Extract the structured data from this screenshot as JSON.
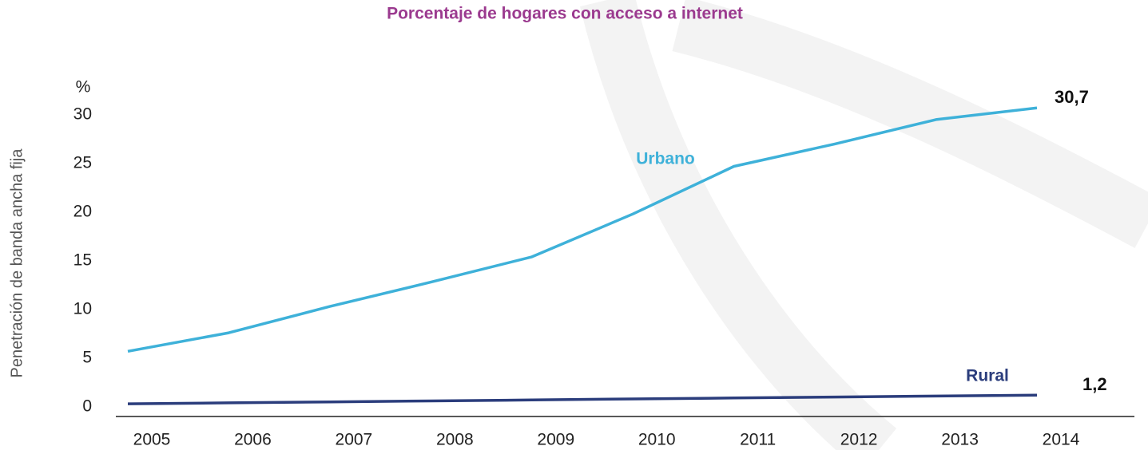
{
  "chart_data": {
    "type": "line",
    "title": "Porcentaje de hogares con acceso a internet",
    "y_label": "Penetración de banda ancha fija",
    "y_unit": "%",
    "categories": [
      "2005",
      "2006",
      "2007",
      "2008",
      "2009",
      "2010",
      "2011",
      "2012",
      "2013",
      "2014"
    ],
    "series": [
      {
        "name": "Urbano",
        "color": "#3eb1d9",
        "values": [
          5.7,
          7.6,
          10.3,
          12.8,
          15.4,
          19.8,
          24.7,
          27.0,
          29.5,
          30.7
        ],
        "value_labels": [
          null,
          null,
          null,
          null,
          null,
          null,
          null,
          null,
          null,
          "30,7"
        ]
      },
      {
        "name": "Rural",
        "color": "#2b3d7c",
        "values": [
          0.3,
          0.4,
          0.5,
          0.6,
          0.7,
          0.8,
          0.9,
          1.0,
          1.1,
          1.2
        ],
        "value_labels": [
          null,
          null,
          null,
          null,
          null,
          null,
          null,
          null,
          null,
          "1,2"
        ]
      }
    ],
    "ylim": [
      -1,
      34
    ],
    "yticks": [
      0,
      5,
      10,
      15,
      20,
      25,
      30
    ],
    "grid": false
  }
}
